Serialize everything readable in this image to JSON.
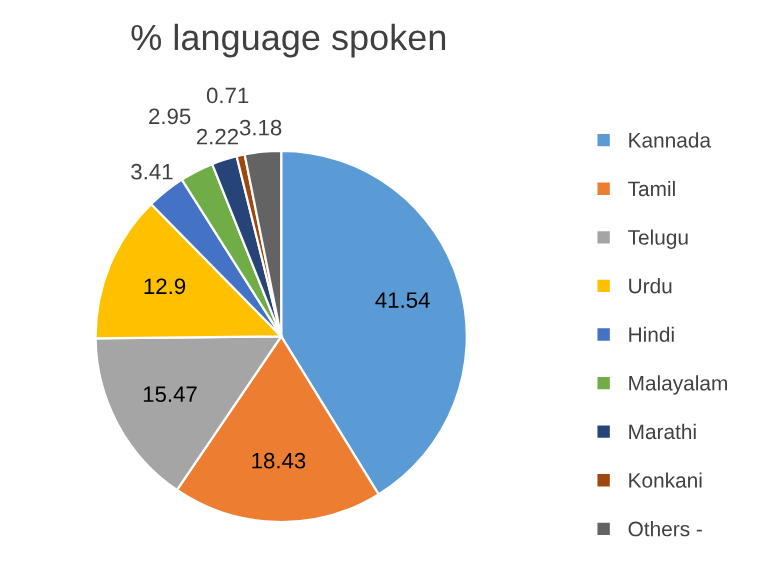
{
  "chart_data": {
    "type": "pie",
    "title": "% language spoken",
    "categories": [
      "Kannada",
      "Tamil",
      "Telugu",
      "Urdu",
      "Hindi",
      "Malayalam",
      "Marathi",
      "Konkani",
      "Others -"
    ],
    "values": [
      41.54,
      18.43,
      15.47,
      12.9,
      3.41,
      2.95,
      2.22,
      0.71,
      3.18
    ],
    "colors": [
      "#5b9bd5",
      "#ed7d31",
      "#a5a5a5",
      "#ffc000",
      "#4472c4",
      "#70ad47",
      "#264478",
      "#9e480e",
      "#636363"
    ],
    "data_labels": true,
    "legend": "right"
  }
}
